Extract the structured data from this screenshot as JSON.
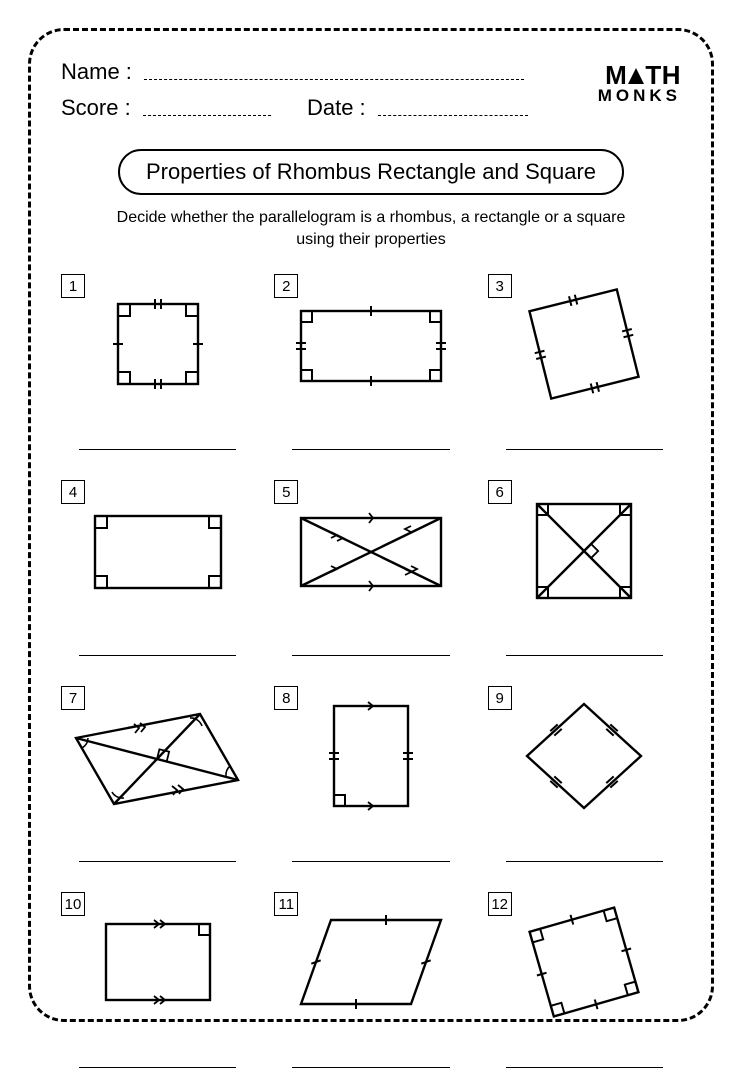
{
  "header": {
    "name_label": "Name :",
    "score_label": "Score :",
    "date_label": "Date :",
    "logo_top": "M",
    "logo_top2": "TH",
    "logo_bottom": "MONKS"
  },
  "title": "Properties of Rhombus Rectangle and Square",
  "instructions": "Decide whether the parallelogram is a rhombus, a rectangle or a square using their properties",
  "stroke": "#000000",
  "stroke_width": 2.4,
  "problems": [
    {
      "n": "1",
      "svg": "<rect x='20' y='18' width='80' height='80' fill='none' stroke='#000' stroke-width='2.4'/><rect x='20' y='18' width='12' height='12' fill='none' stroke='#000' stroke-width='2'/><rect x='88' y='18' width='12' height='12' fill='none' stroke='#000' stroke-width='2'/><rect x='20' y='86' width='12' height='12' fill='none' stroke='#000' stroke-width='2'/><rect x='88' y='86' width='12' height='12' fill='none' stroke='#000' stroke-width='2'/><line x1='57' y1='13' x2='57' y2='23' stroke='#000' stroke-width='2'/><line x1='63' y1='13' x2='63' y2='23' stroke='#000' stroke-width='2'/><line x1='57' y1='93' x2='57' y2='103' stroke='#000' stroke-width='2'/><line x1='63' y1='93' x2='63' y2='103' stroke='#000' stroke-width='2'/><line x1='15' y1='58' x2='25' y2='58' stroke='#000' stroke-width='2'/><line x1='95' y1='58' x2='105' y2='58' stroke='#000' stroke-width='2'/>",
      "vb": "0 0 120 116"
    },
    {
      "n": "2",
      "svg": "<rect x='10' y='25' width='140' height='70' fill='none' stroke='#000' stroke-width='2.4'/><rect x='10' y='25' width='11' height='11' fill='none' stroke='#000' stroke-width='2'/><rect x='139' y='25' width='11' height='11' fill='none' stroke='#000' stroke-width='2'/><rect x='10' y='84' width='11' height='11' fill='none' stroke='#000' stroke-width='2'/><rect x='139' y='84' width='11' height='11' fill='none' stroke='#000' stroke-width='2'/><line x1='80' y1='20' x2='80' y2='30' stroke='#000' stroke-width='2'/><line x1='80' y1='90' x2='80' y2='100' stroke='#000' stroke-width='2'/><line x1='5' y1='57' x2='15' y2='57' stroke='#000' stroke-width='2'/><line x1='5' y1='63' x2='15' y2='63' stroke='#000' stroke-width='2'/><line x1='145' y1='57' x2='155' y2='57' stroke='#000' stroke-width='2'/><line x1='145' y1='63' x2='155' y2='63' stroke='#000' stroke-width='2'/>",
      "vb": "0 0 160 116"
    },
    {
      "n": "3",
      "svg": "<g transform='translate(65,58) rotate(-14)'><rect x='-45' y='-45' width='90' height='90' fill='none' stroke='#000' stroke-width='2.4'/><line x1='-3' y1='-50' x2='-3' y2='-40' stroke='#000' stroke-width='2'/><line x1='3' y1='-50' x2='3' y2='-40' stroke='#000' stroke-width='2'/><line x1='-3' y1='40' x2='-3' y2='50' stroke='#000' stroke-width='2'/><line x1='3' y1='40' x2='3' y2='50' stroke='#000' stroke-width='2'/><line x1='-50' y1='-3' x2='-40' y2='-3' stroke='#000' stroke-width='2'/><line x1='-50' y1='3' x2='-40' y2='3' stroke='#000' stroke-width='2'/><line x1='40' y1='-3' x2='50' y2='-3' stroke='#000' stroke-width='2'/><line x1='40' y1='3' x2='50' y2='3' stroke='#000' stroke-width='2'/></g>",
      "vb": "0 0 130 116"
    },
    {
      "n": "4",
      "svg": "<rect x='12' y='24' width='126' height='72' fill='none' stroke='#000' stroke-width='2.4'/><rect x='12' y='24' width='12' height='12' fill='none' stroke='#000' stroke-width='2'/><rect x='126' y='24' width='12' height='12' fill='none' stroke='#000' stroke-width='2'/><rect x='12' y='84' width='12' height='12' fill='none' stroke='#000' stroke-width='2'/><rect x='126' y='84' width='12' height='12' fill='none' stroke='#000' stroke-width='2'/>",
      "vb": "0 0 150 116"
    },
    {
      "n": "5",
      "svg": "<rect x='10' y='26' width='140' height='68' fill='none' stroke='#000' stroke-width='2.4'/><line x1='10' y1='26' x2='150' y2='94' stroke='#000' stroke-width='2.4'/><line x1='10' y1='94' x2='150' y2='26' stroke='#000' stroke-width='2.4'/><path d='M 40 40 l 6 3 l -6 3' fill='none' stroke='#000' stroke-width='1.8'/><path d='M 46 43 l 6 3 l -6 3' fill='none' stroke='#000' stroke-width='1.8'/><path d='M 114 43 l 6 -3 l -6 -3' fill='none' stroke='#000' stroke-width='1.8' transform='translate(0,40)'/><path d='M 120 40 l 6 -3 l -6 -3' fill='none' stroke='#000' stroke-width='1.8' transform='translate(0,40)'/><path d='M 40 80 l 6 -3 l -6 -3' fill='none' stroke='#000' stroke-width='1.8'/><path d='M 120 40 l -6 -3 l 6 -3' fill='none' stroke='#000' stroke-width='1.8' transform='translate(0,0) scale(1,1)'/><path d='M 78 21 l 4 5 l -4 5' fill='none' stroke='#000' stroke-width='1.8' transform='rotate(0)'/><path d='M 78 89 l 4 5 l -4 5' fill='none' stroke='#000' stroke-width='1.8'/>",
      "vb": "0 0 160 116"
    },
    {
      "n": "6",
      "svg": "<rect x='18' y='14' width='94' height='94' fill='none' stroke='#000' stroke-width='2.4'/><line x1='18' y1='14' x2='112' y2='108' stroke='#000' stroke-width='2.4'/><line x1='18' y1='108' x2='112' y2='14' stroke='#000' stroke-width='2.4'/><rect x='18' y='14' width='11' height='11' fill='none' stroke='#000' stroke-width='2'/><rect x='101' y='14' width='11' height='11' fill='none' stroke='#000' stroke-width='2'/><rect x='18' y='97' width='11' height='11' fill='none' stroke='#000' stroke-width='2'/><rect x='101' y='97' width='11' height='11' fill='none' stroke='#000' stroke-width='2'/><g transform='translate(65,61) rotate(45)'><rect x='0' y='-10' width='10' height='10' fill='none' stroke='#000' stroke-width='1.8'/></g>",
      "vb": "0 0 130 120"
    },
    {
      "n": "7",
      "svg": "<polygon points='6,42 130,18 168,84 44,108' fill='none' stroke='#000' stroke-width='2.4'/><line x1='6' y1='42' x2='168' y2='84' stroke='#000' stroke-width='2.4'/><line x1='130' y1='18' x2='44' y2='108' stroke='#000' stroke-width='2.4'/><g transform='translate(87,63) rotate(14)'><rect x='0' y='-10' width='10' height='10' fill='none' stroke='#000' stroke-width='1.8'/></g><path d='M 18 42 A 12 12 0 0 1 12 52' fill='none' stroke='#000' stroke-width='1.6'/><path d='M 120 22 A 12 12 0 0 1 132 30' fill='none' stroke='#000' stroke-width='1.6'/><path d='M 156 80 A 12 12 0 0 1 160 70' fill='none' stroke='#000' stroke-width='1.6'/><path d='M 54 102 A 12 12 0 0 1 42 96' fill='none' stroke='#000' stroke-width='1.6'/><path d='M 64 28 l 5 4 l -4 5' fill='none' stroke='#000' stroke-width='1.8'/><path d='M 70 27 l 5 4 l -4 5' fill='none' stroke='#000' stroke-width='1.8'/><path d='M 102 94 l 5 4 l -4 5' fill='none' stroke='#000' stroke-width='1.8' transform='translate(0,-4)'/><path d='M 108 93 l 5 4 l -4 5' fill='none' stroke='#000' stroke-width='1.8' transform='translate(0,-4)'/>",
      "vb": "0 0 175 120"
    },
    {
      "n": "8",
      "svg": "<rect x='28' y='10' width='74' height='100' fill='none' stroke='#000' stroke-width='2.4'/><rect x='28' y='99' width='11' height='11' fill='none' stroke='#000' stroke-width='2'/><path d='M 62 6 l 5 4 l -5 4' fill='none' stroke='#000' stroke-width='1.8'/><path d='M 62 106 l 5 4 l -5 4' fill='none' stroke='#000' stroke-width='1.8'/><line x1='23' y1='57' x2='33' y2='57' stroke='#000' stroke-width='2'/><line x1='23' y1='63' x2='33' y2='63' stroke='#000' stroke-width='2'/><line x1='97' y1='57' x2='107' y2='57' stroke='#000' stroke-width='2'/><line x1='97' y1='63' x2='107' y2='63' stroke='#000' stroke-width='2'/>",
      "vb": "0 0 130 120"
    },
    {
      "n": "9",
      "svg": "<polygon points='65,8 122,60 65,112 8,60' fill='none' stroke='#000' stroke-width='2.4'/><g transform='translate(93,34) rotate(42)'><line x1='-5' y1='-3' x2='5' y2='-3' stroke='#000' stroke-width='2'/><line x1='-5' y1='3' x2='5' y2='3' stroke='#000' stroke-width='2'/></g><g transform='translate(93,86) rotate(-42)'><line x1='-5' y1='-3' x2='5' y2='-3' stroke='#000' stroke-width='2'/><line x1='-5' y1='3' x2='5' y2='3' stroke='#000' stroke-width='2'/></g><g transform='translate(37,34) rotate(-42)'><line x1='-5' y1='-3' x2='5' y2='-3' stroke='#000' stroke-width='2'/><line x1='-5' y1='3' x2='5' y2='3' stroke='#000' stroke-width='2'/></g><g transform='translate(37,86) rotate(42)'><line x1='-5' y1='-3' x2='5' y2='-3' stroke='#000' stroke-width='2'/><line x1='-5' y1='3' x2='5' y2='3' stroke='#000' stroke-width='2'/></g>",
      "vb": "0 0 130 120"
    },
    {
      "n": "10",
      "svg": "<rect x='18' y='22' width='104' height='76' fill='none' stroke='#000' stroke-width='2.4'/><rect x='111' y='22' width='11' height='11' fill='none' stroke='#000' stroke-width='2'/><path d='M 66 18 l 5 4 l -5 4' fill='none' stroke='#000' stroke-width='1.8'/><path d='M 72 18 l 5 4 l -5 4' fill='none' stroke='#000' stroke-width='1.8'/><path d='M 66 94 l 5 4 l -5 4' fill='none' stroke='#000' stroke-width='1.8'/><path d='M 72 94 l 5 4 l -5 4' fill='none' stroke='#000' stroke-width='1.8'/>",
      "vb": "0 0 140 120"
    },
    {
      "n": "11",
      "svg": "<polygon points='38,18 148,18 118,102 8,102' fill='none' stroke='#000' stroke-width='2.4'/><g transform='translate(93,18)'><line x1='0' y1='-5' x2='0' y2='5' stroke='#000' stroke-width='2'/></g><g transform='translate(63,102)'><line x1='0' y1='-5' x2='0' y2='5' stroke='#000' stroke-width='2'/></g><g transform='translate(133,60) rotate(70)'><line x1='0' y1='-5' x2='0' y2='5' stroke='#000' stroke-width='2'/></g><g transform='translate(23,60) rotate(70)'><line x1='0' y1='-5' x2='0' y2='5' stroke='#000' stroke-width='2'/></g>",
      "vb": "0 0 156 120"
    },
    {
      "n": "12",
      "svg": "<g transform='translate(65,60) rotate(-16)'><rect x='-44' y='-44' width='88' height='88' fill='none' stroke='#000' stroke-width='2.4'/><rect x='-44' y='-44' width='11' height='11' fill='none' stroke='#000' stroke-width='2'/><rect x='33' y='-44' width='11' height='11' fill='none' stroke='#000' stroke-width='2'/><rect x='-44' y='33' width='11' height='11' fill='none' stroke='#000' stroke-width='2'/><rect x='33' y='33' width='11' height='11' fill='none' stroke='#000' stroke-width='2'/><line x1='0' y1='-49' x2='0' y2='-39' stroke='#000' stroke-width='2'/><line x1='0' y1='39' x2='0' y2='49' stroke='#000' stroke-width='2'/><line x1='-49' y1='0' x2='-39' y2='0' stroke='#000' stroke-width='2'/><line x1='39' y1='0' x2='49' y2='0' stroke='#000' stroke-width='2'/></g>",
      "vb": "0 0 130 120"
    }
  ]
}
